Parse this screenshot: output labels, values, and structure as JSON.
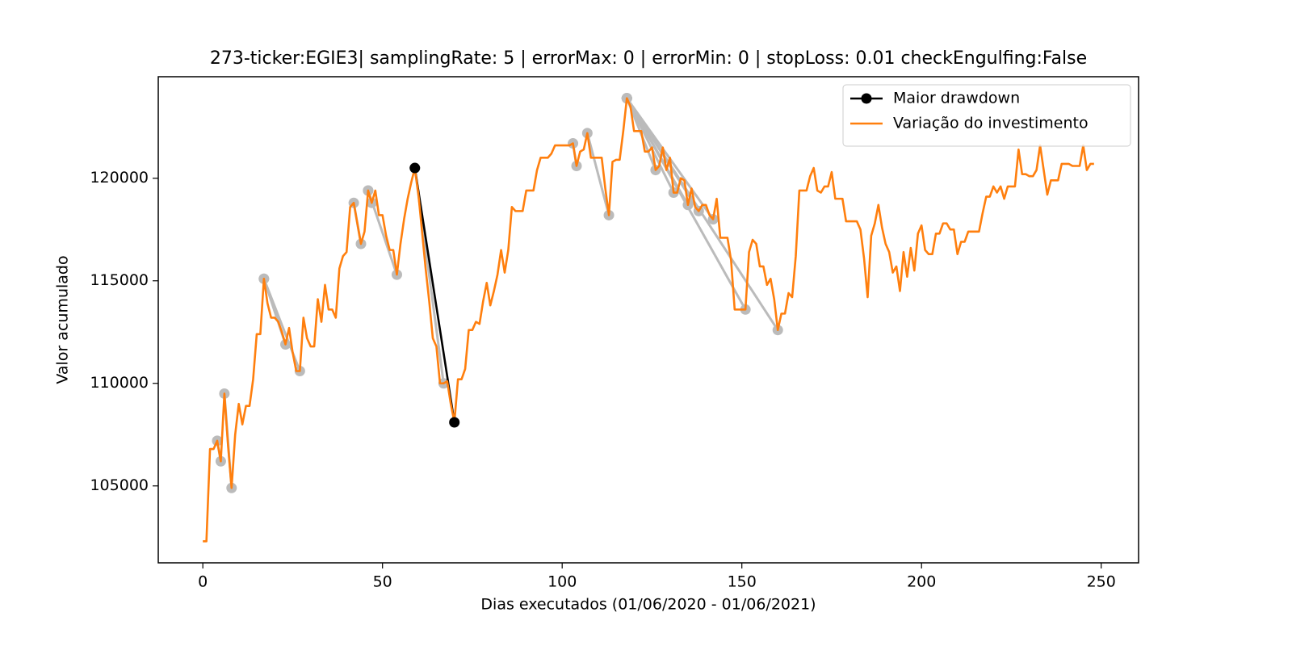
{
  "chart_data": {
    "type": "line",
    "title": "273-ticker:EGIE3| samplingRate: 5 | errorMax: 0 | errorMin: 0 | stopLoss: 0.01 checkEngulfing:False",
    "xlabel": "Dias executados (01/06/2020 - 01/06/2021)",
    "ylabel": "Valor acumulado",
    "xlim": [
      -12.4,
      260.4
    ],
    "ylim": [
      101250,
      124950
    ],
    "xticks": [
      0,
      50,
      100,
      150,
      200,
      250
    ],
    "yticks": [
      105000,
      110000,
      115000,
      120000
    ],
    "legend": "upper right",
    "drawdown_color": "#bbbbbb",
    "drawdowns": [
      {
        "x": [
          4,
          5
        ],
        "values": [
          107200,
          106200
        ]
      },
      {
        "x": [
          6,
          8
        ],
        "values": [
          109500,
          104900
        ]
      },
      {
        "x": [
          17,
          23
        ],
        "values": [
          115100,
          111900
        ]
      },
      {
        "x": [
          17,
          27
        ],
        "values": [
          115100,
          110600
        ]
      },
      {
        "x": [
          42,
          44
        ],
        "values": [
          118800,
          116800
        ]
      },
      {
        "x": [
          46,
          47
        ],
        "values": [
          119400,
          118800
        ]
      },
      {
        "x": [
          46,
          54
        ],
        "values": [
          119400,
          115300
        ]
      },
      {
        "x": [
          59,
          67
        ],
        "values": [
          120500,
          110000
        ]
      },
      {
        "x": [
          103,
          104
        ],
        "values": [
          121700,
          120600
        ]
      },
      {
        "x": [
          107,
          113
        ],
        "values": [
          122200,
          118200
        ]
      },
      {
        "x": [
          118,
          126
        ],
        "values": [
          123900,
          120400
        ]
      },
      {
        "x": [
          118,
          131
        ],
        "values": [
          123900,
          119300
        ]
      },
      {
        "x": [
          118,
          135
        ],
        "values": [
          123900,
          118700
        ]
      },
      {
        "x": [
          118,
          138
        ],
        "values": [
          123900,
          118400
        ]
      },
      {
        "x": [
          118,
          142
        ],
        "values": [
          123900,
          118000
        ]
      },
      {
        "x": [
          118,
          151
        ],
        "values": [
          123900,
          113600
        ]
      },
      {
        "x": [
          118,
          160
        ],
        "values": [
          123900,
          112600
        ]
      }
    ],
    "series": [
      {
        "name": "Maior drawdown",
        "color": "#000000",
        "marker": true,
        "x": [
          59,
          70
        ],
        "values": [
          120500,
          108100
        ]
      },
      {
        "name": "Variação do investimento",
        "color": "#ff7f0e",
        "marker": false,
        "x": [
          0,
          1,
          2,
          3,
          4,
          5,
          6,
          7,
          8,
          9,
          10,
          11,
          12,
          13,
          14,
          15,
          16,
          17,
          18,
          19,
          20,
          21,
          22,
          23,
          24,
          25,
          26,
          27,
          28,
          29,
          30,
          31,
          32,
          33,
          34,
          35,
          36,
          37,
          38,
          39,
          40,
          41,
          42,
          43,
          44,
          45,
          46,
          47,
          48,
          49,
          50,
          51,
          52,
          53,
          54,
          55,
          56,
          57,
          58,
          59,
          60,
          61,
          62,
          63,
          64,
          65,
          66,
          67,
          68,
          69,
          70,
          71,
          72,
          73,
          74,
          75,
          76,
          77,
          78,
          79,
          80,
          81,
          82,
          83,
          84,
          85,
          86,
          87,
          88,
          89,
          90,
          91,
          92,
          93,
          94,
          95,
          96,
          97,
          98,
          99,
          100,
          101,
          102,
          103,
          104,
          105,
          106,
          107,
          108,
          109,
          110,
          111,
          112,
          113,
          114,
          115,
          116,
          117,
          118,
          119,
          120,
          121,
          122,
          123,
          124,
          125,
          126,
          127,
          128,
          129,
          130,
          131,
          132,
          133,
          134,
          135,
          136,
          137,
          138,
          139,
          140,
          141,
          142,
          143,
          144,
          145,
          146,
          147,
          148,
          149,
          150,
          151,
          152,
          153,
          154,
          155,
          156,
          157,
          158,
          159,
          160,
          161,
          162,
          163,
          164,
          165,
          166,
          167,
          168,
          169,
          170,
          171,
          172,
          173,
          174,
          175,
          176,
          177,
          178,
          179,
          180,
          181,
          182,
          183,
          184,
          185,
          186,
          187,
          188,
          189,
          190,
          191,
          192,
          193,
          194,
          195,
          196,
          197,
          198,
          199,
          200,
          201,
          202,
          203,
          204,
          205,
          206,
          207,
          208,
          209,
          210,
          211,
          212,
          213,
          214,
          215,
          216,
          217,
          218,
          219,
          220,
          221,
          222,
          223,
          224,
          225,
          226,
          227,
          228,
          229,
          230,
          231,
          232,
          233,
          234,
          235,
          236,
          237,
          238,
          239,
          240,
          241,
          242,
          243,
          244,
          245,
          246,
          247,
          248
        ],
        "values": [
          102300,
          102300,
          106800,
          106800,
          107200,
          106200,
          109500,
          107000,
          104900,
          107500,
          109000,
          108000,
          108900,
          108900,
          110200,
          112400,
          112400,
          115100,
          113900,
          113200,
          113200,
          113000,
          112500,
          111900,
          112700,
          111500,
          110600,
          110600,
          113200,
          112200,
          111800,
          111800,
          114100,
          113000,
          114800,
          113600,
          113600,
          113200,
          115600,
          116200,
          116400,
          118600,
          118800,
          117800,
          116800,
          117400,
          119400,
          118800,
          119400,
          118200,
          118200,
          117200,
          116500,
          116500,
          115300,
          116800,
          118000,
          119000,
          119800,
          120500,
          119200,
          117400,
          115600,
          114000,
          112200,
          111800,
          110000,
          110000,
          110100,
          109000,
          108100,
          110200,
          110200,
          110700,
          112600,
          112600,
          113000,
          112900,
          114000,
          114900,
          113800,
          114500,
          115300,
          116500,
          115400,
          116500,
          118600,
          118400,
          118400,
          118400,
          119400,
          119400,
          119400,
          120400,
          121000,
          121000,
          121000,
          121200,
          121600,
          121600,
          121600,
          121600,
          121600,
          121700,
          120600,
          121300,
          121400,
          122200,
          121000,
          121000,
          121000,
          121000,
          119500,
          118200,
          120800,
          120900,
          120900,
          122300,
          123900,
          123500,
          122300,
          122300,
          122300,
          121300,
          121300,
          121500,
          120400,
          120600,
          121500,
          120400,
          121000,
          119300,
          119300,
          120000,
          119900,
          118700,
          119500,
          118600,
          118400,
          118700,
          118700,
          118200,
          118000,
          119000,
          117100,
          117100,
          117100,
          116000,
          113600,
          113600,
          113600,
          113600,
          116400,
          117000,
          116800,
          115700,
          115700,
          114800,
          115100,
          114100,
          112600,
          113400,
          113400,
          114400,
          114200,
          116200,
          119400,
          119400,
          119400,
          120100,
          120500,
          119400,
          119300,
          119600,
          119600,
          120300,
          119000,
          119000,
          119000,
          117900,
          117900,
          117900,
          117900,
          117500,
          116100,
          114200,
          117200,
          117800,
          118700,
          117600,
          116800,
          116400,
          115400,
          115700,
          114500,
          116400,
          115200,
          116600,
          115500,
          117300,
          117700,
          116500,
          116300,
          116300,
          117300,
          117300,
          117800,
          117800,
          117500,
          117500,
          116300,
          116900,
          116900,
          117400,
          117400,
          117400,
          117400,
          118300,
          119100,
          119100,
          119600,
          119300,
          119600,
          119000,
          119600,
          119600,
          119600,
          121400,
          120200,
          120200,
          120100,
          120100,
          120400,
          121600,
          120400,
          119200,
          119900,
          119900,
          119900,
          120700,
          120700,
          120700,
          120600,
          120600,
          120600,
          121600,
          120400,
          120700,
          120700
        ]
      }
    ]
  }
}
